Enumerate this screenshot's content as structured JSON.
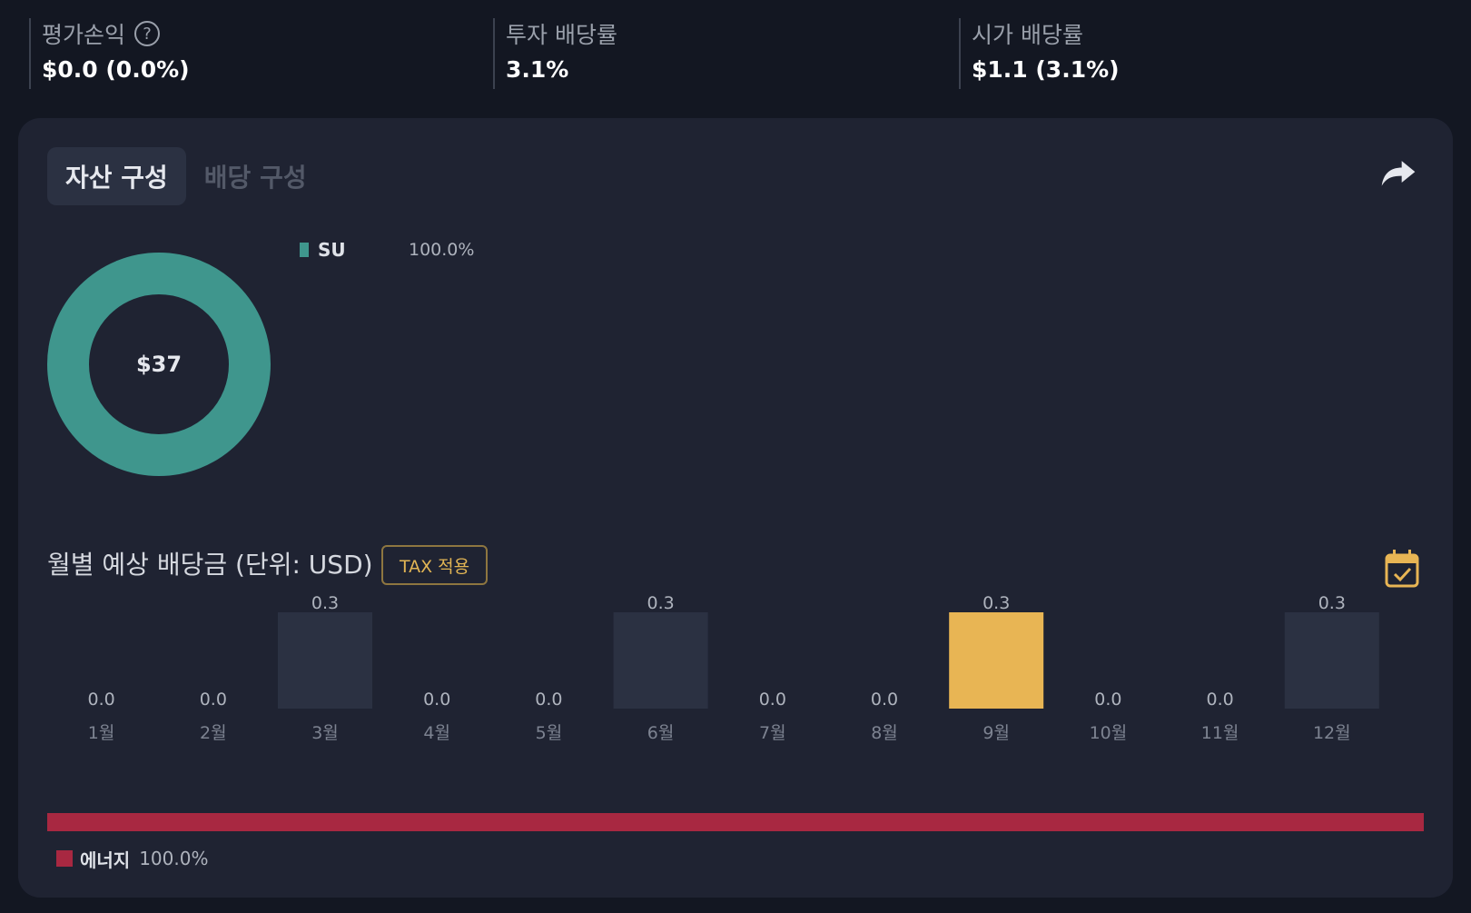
{
  "summary": {
    "unrealized": {
      "label": "평가손익",
      "value": "$0.0 (0.0%)",
      "help_icon": "question-circle-icon"
    },
    "yield_on_cost": {
      "label": "투자 배당률",
      "value": "3.1%"
    },
    "market_yield": {
      "label": "시가 배당률",
      "value": "$1.1 (3.1%)"
    }
  },
  "tabs": [
    {
      "label": "자산 구성",
      "active": true
    },
    {
      "label": "배당 구성",
      "active": false
    }
  ],
  "share_icon": "share-arrow-icon",
  "composition": {
    "total": "$37",
    "holdings": [
      {
        "ticker": "SU",
        "pct": "100.0%",
        "color": "#3f968d",
        "share": 1.0
      }
    ]
  },
  "dividends": {
    "title": "월별 예상 배당금 (단위: USD)",
    "tax_button": "TAX 적용",
    "calendar_icon": "calendar-check-icon"
  },
  "chart_data": {
    "type": "bar",
    "categories": [
      "1월",
      "2월",
      "3월",
      "4월",
      "5월",
      "6월",
      "7월",
      "8월",
      "9월",
      "10월",
      "11월",
      "12월"
    ],
    "values": [
      0.0,
      0.0,
      0.3,
      0.0,
      0.0,
      0.3,
      0.0,
      0.0,
      0.3,
      0.0,
      0.0,
      0.3
    ],
    "value_labels": [
      "0.0",
      "0.0",
      "0.3",
      "0.0",
      "0.0",
      "0.3",
      "0.0",
      "0.0",
      "0.3",
      "0.0",
      "0.0",
      "0.3"
    ],
    "highlight_index": 8,
    "bar_color": "#2b3142",
    "highlight_color": "#e8b554",
    "ylim": [
      0,
      0.3
    ]
  },
  "sectors": [
    {
      "name": "에너지",
      "pct": "100.0%",
      "color": "#a82841",
      "share": 1.0
    }
  ]
}
